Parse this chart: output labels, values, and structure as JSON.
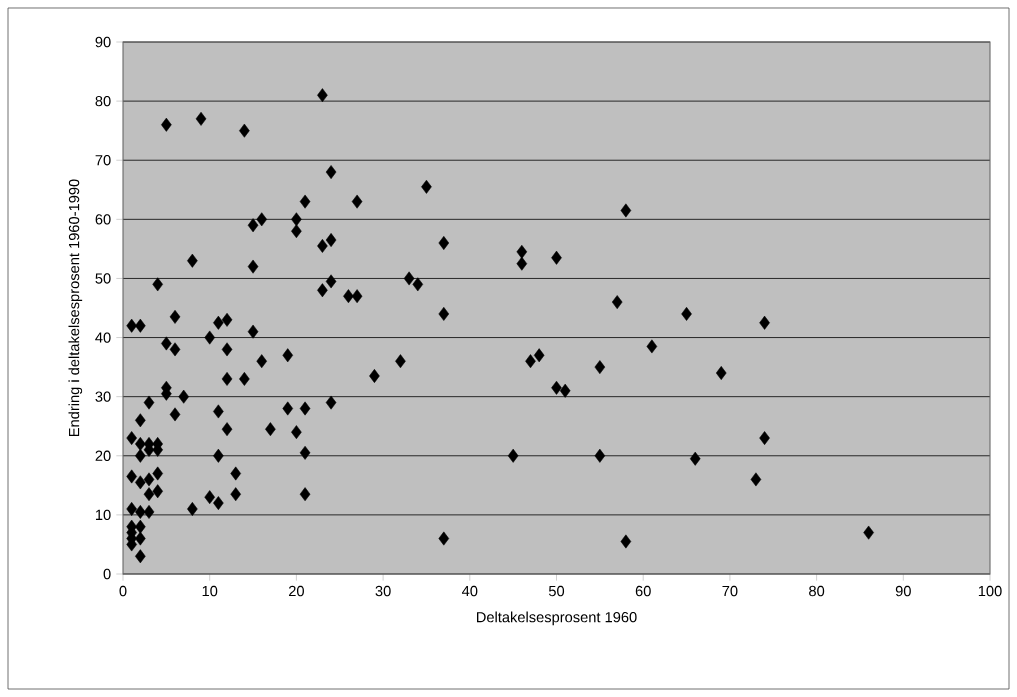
{
  "chart_data": {
    "type": "scatter",
    "xlabel": "Deltakelsesprosent 1960",
    "ylabel": "Endring i deltakelsesprosent 1960-1990",
    "xlim": [
      0,
      100
    ],
    "ylim": [
      0,
      90
    ],
    "xticks": [
      0,
      10,
      20,
      30,
      40,
      50,
      60,
      70,
      80,
      90,
      100
    ],
    "yticks": [
      0,
      10,
      20,
      30,
      40,
      50,
      60,
      70,
      80,
      90
    ],
    "grid": "y",
    "marker": "diamond",
    "color": "#000000",
    "x": [
      1,
      2,
      1,
      2,
      1,
      2,
      3,
      2,
      3,
      2,
      3,
      4,
      4,
      4,
      4,
      3,
      3,
      2,
      1,
      1,
      2,
      1,
      2,
      1,
      2,
      3,
      1,
      5,
      9,
      14,
      23,
      4,
      5,
      6,
      6,
      5,
      5,
      6,
      7,
      8,
      8,
      10,
      11,
      12,
      12,
      12,
      11,
      12,
      11,
      10,
      11,
      13,
      13,
      14,
      15,
      15,
      15,
      16,
      16,
      17,
      19,
      19,
      20,
      20,
      20,
      21,
      21,
      21,
      21,
      23,
      24,
      24,
      23,
      24,
      24,
      26,
      27,
      27,
      29,
      32,
      33,
      34,
      35,
      37,
      37,
      37,
      45,
      46,
      46,
      47,
      48,
      50,
      50,
      51,
      55,
      55,
      57,
      58,
      58,
      61,
      65,
      66,
      69,
      73,
      74,
      74,
      86
    ],
    "values": [
      42,
      42,
      23,
      26,
      16.5,
      15.5,
      16,
      20,
      21,
      22,
      22,
      21,
      22,
      17,
      14,
      13.5,
      10.5,
      10.5,
      11,
      8,
      8,
      6,
      6,
      5,
      3,
      29,
      7,
      76,
      77,
      75,
      81,
      49,
      39,
      38,
      43.5,
      31.5,
      30.5,
      27,
      30,
      53,
      11,
      40,
      42.5,
      43,
      38,
      33,
      27.5,
      24.5,
      20,
      13,
      12,
      17,
      13.5,
      33,
      41,
      52,
      59,
      60,
      36,
      24.5,
      37,
      28,
      24,
      60,
      58,
      63,
      28,
      20.5,
      13.5,
      55.5,
      56.5,
      68,
      48,
      49.5,
      29,
      47,
      47,
      63,
      33.5,
      36,
      50,
      49,
      65.5,
      56,
      44,
      6,
      20,
      54.5,
      52.5,
      36,
      37,
      53.5,
      31.5,
      31,
      35,
      20,
      46,
      61.5,
      5.5,
      38.5,
      44,
      19.5,
      34,
      16,
      42.5,
      23,
      7
    ]
  }
}
